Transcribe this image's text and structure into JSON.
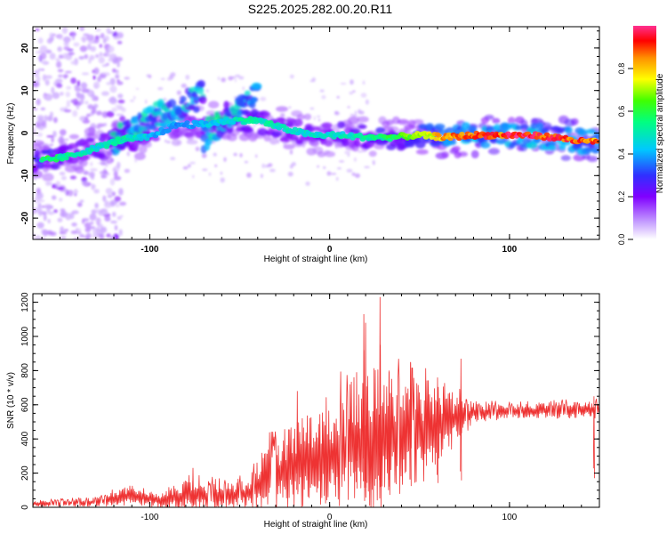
{
  "title": "S225.2025.282.00.20.R11",
  "chart_data": [
    {
      "type": "heatmap",
      "title": "S225.2025.282.00.20.R11",
      "xlabel": "Height of straight line (km)",
      "ylabel": "Frequency (Hz)",
      "xlim": [
        -165,
        150
      ],
      "ylim": [
        -25,
        25
      ],
      "xticks": [
        -100,
        0,
        100
      ],
      "yticks": [
        -20,
        -10,
        0,
        10,
        20
      ],
      "colorbar": {
        "label": "Normalized spectral amplitude",
        "range": [
          0,
          1
        ],
        "ticks": [
          0.0,
          0.2,
          0.4,
          0.6,
          0.8
        ],
        "tick_labels": [
          "0.0",
          "0.2",
          "0.4",
          "0.6",
          "0.8"
        ],
        "colors": [
          "#ffffff",
          "#c6a0ff",
          "#8000ff",
          "#3030ff",
          "#00c8ff",
          "#00ff80",
          "#40ff00",
          "#ffff00",
          "#ff9000",
          "#ff0000",
          "#ff3090"
        ]
      },
      "ridge": [
        {
          "x": -160,
          "y": -6.5,
          "a": 0.55
        },
        {
          "x": -145,
          "y": -5.5,
          "a": 0.5
        },
        {
          "x": -130,
          "y": -3.5,
          "a": 0.45
        },
        {
          "x": -115,
          "y": -1.5,
          "a": 0.5
        },
        {
          "x": -100,
          "y": -1.0,
          "a": 0.4
        },
        {
          "x": -85,
          "y": 2.0,
          "a": 0.35
        },
        {
          "x": -70,
          "y": 2.0,
          "a": 0.4
        },
        {
          "x": -55,
          "y": 3.0,
          "a": 0.45
        },
        {
          "x": -40,
          "y": 3.0,
          "a": 0.5
        },
        {
          "x": -25,
          "y": 1.0,
          "a": 0.45
        },
        {
          "x": -10,
          "y": -0.5,
          "a": 0.45
        },
        {
          "x": 5,
          "y": -0.5,
          "a": 0.45
        },
        {
          "x": 20,
          "y": -1.0,
          "a": 0.5
        },
        {
          "x": 35,
          "y": -1.0,
          "a": 0.55
        },
        {
          "x": 50,
          "y": -0.5,
          "a": 0.65
        },
        {
          "x": 65,
          "y": -1.0,
          "a": 0.8
        },
        {
          "x": 80,
          "y": -0.5,
          "a": 0.85
        },
        {
          "x": 95,
          "y": -0.5,
          "a": 0.85
        },
        {
          "x": 110,
          "y": -0.5,
          "a": 0.9
        },
        {
          "x": 125,
          "y": -1.0,
          "a": 0.85
        },
        {
          "x": 140,
          "y": -2.0,
          "a": 0.85
        },
        {
          "x": 148,
          "y": -2.0,
          "a": 0.8
        }
      ],
      "branch_a": [
        {
          "x": -120,
          "y": -2.0
        },
        {
          "x": -100,
          "y": 3.0
        },
        {
          "x": -90,
          "y": 5.0
        },
        {
          "x": -80,
          "y": 7.0
        },
        {
          "x": -70,
          "y": 9.5
        }
      ],
      "branch_b": [
        {
          "x": -70,
          "y": -1.0
        },
        {
          "x": -60,
          "y": 3.0
        },
        {
          "x": -50,
          "y": 6.0
        },
        {
          "x": -40,
          "y": 9.0
        }
      ]
    },
    {
      "type": "line",
      "xlabel": "Height of straight line (km)",
      "ylabel": "SNR (10 * v/v)",
      "xlim": [
        -165,
        150
      ],
      "ylim": [
        0,
        1250
      ],
      "xticks": [
        -100,
        0,
        100
      ],
      "yticks": [
        0,
        200,
        400,
        600,
        800,
        1000,
        1200
      ],
      "color": "#ee3333",
      "series": [
        {
          "name": "SNR",
          "envelope": [
            {
              "x": -165,
              "base": 20,
              "amp": 15
            },
            {
              "x": -130,
              "base": 30,
              "amp": 25
            },
            {
              "x": -110,
              "base": 70,
              "amp": 60
            },
            {
              "x": -95,
              "base": 40,
              "amp": 40
            },
            {
              "x": -80,
              "base": 70,
              "amp": 90
            },
            {
              "x": -60,
              "base": 60,
              "amp": 80
            },
            {
              "x": -45,
              "base": 80,
              "amp": 80
            },
            {
              "x": -40,
              "base": 120,
              "amp": 180
            },
            {
              "x": -20,
              "base": 250,
              "amp": 250
            },
            {
              "x": 0,
              "base": 300,
              "amp": 300
            },
            {
              "x": 18,
              "base": 380,
              "amp": 420
            },
            {
              "x": 30,
              "base": 400,
              "amp": 420
            },
            {
              "x": 50,
              "base": 420,
              "amp": 300
            },
            {
              "x": 65,
              "base": 500,
              "amp": 200
            },
            {
              "x": 80,
              "base": 550,
              "amp": 60
            },
            {
              "x": 100,
              "base": 560,
              "amp": 40
            },
            {
              "x": 150,
              "base": 570,
              "amp": 50
            }
          ],
          "spikes": [
            {
              "x": -76,
              "y": 230
            },
            {
              "x": -18,
              "y": 680
            },
            {
              "x": 15,
              "y": 790
            },
            {
              "x": 19,
              "y": 1130
            },
            {
              "x": 20,
              "y": 1080
            },
            {
              "x": 28,
              "y": 1230
            },
            {
              "x": 33,
              "y": 800
            },
            {
              "x": 45,
              "y": 850
            },
            {
              "x": 60,
              "y": 760
            },
            {
              "x": 73,
              "y": 870
            },
            {
              "x": 147,
              "y": 650
            }
          ]
        }
      ]
    }
  ]
}
